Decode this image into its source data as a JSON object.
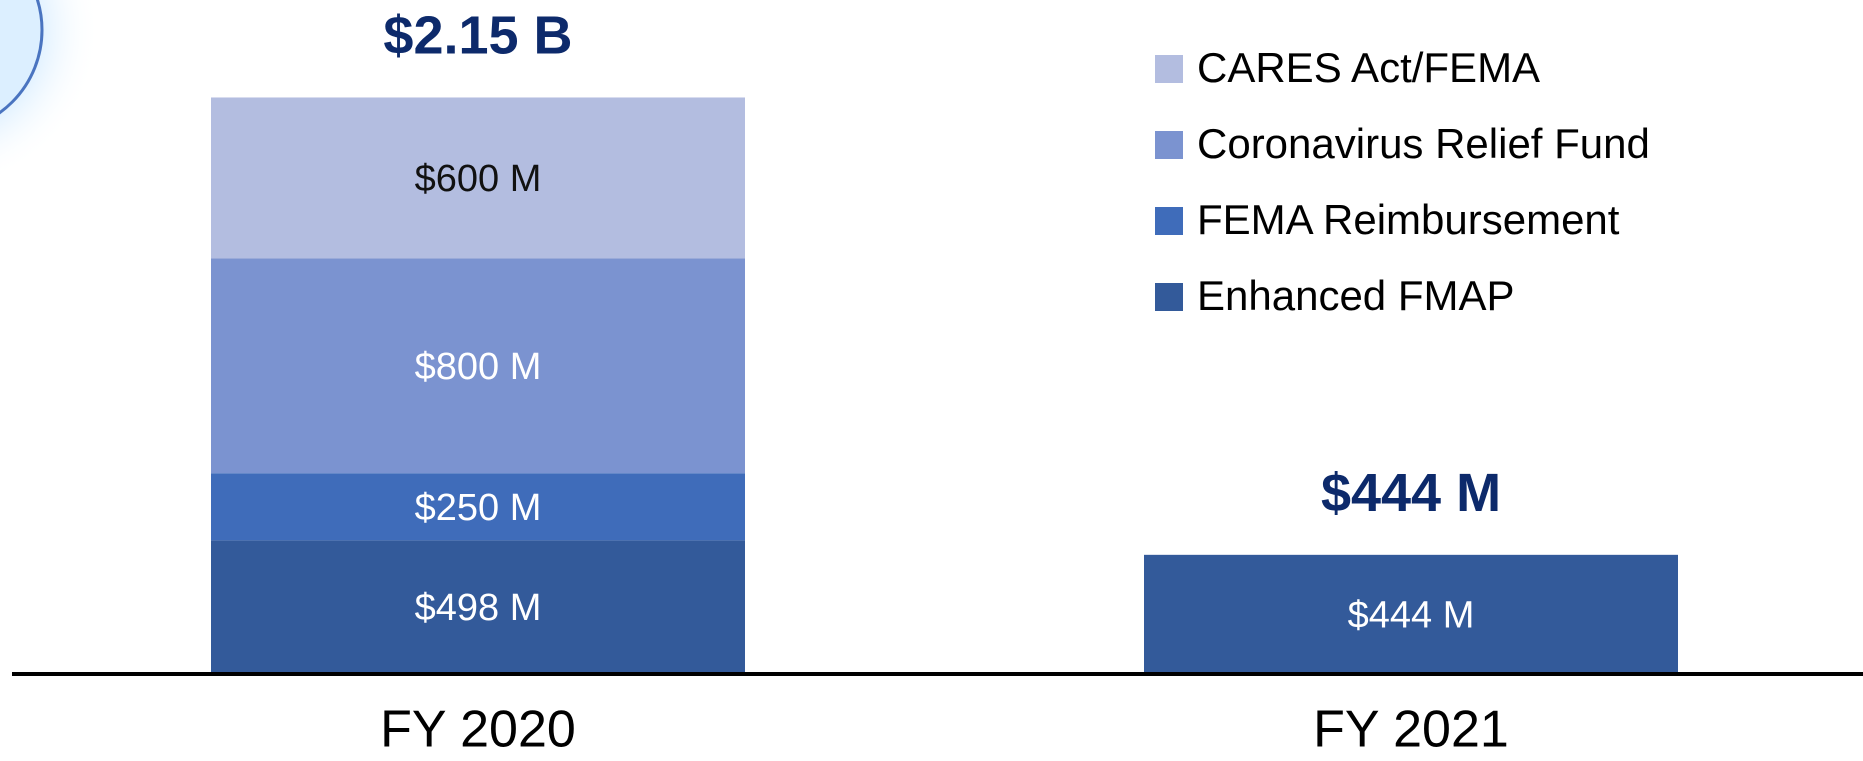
{
  "chart_data": {
    "type": "stacked_bar",
    "categories": [
      "FY 2020",
      "FY 2021"
    ],
    "series": [
      {
        "name": "Enhanced FMAP",
        "color": "#335a9a",
        "label_color": "#ffffff",
        "values": [
          498,
          444
        ],
        "value_labels": [
          "$498 M",
          "$444 M"
        ]
      },
      {
        "name": "FEMA Reimbursement",
        "color": "#3f6cba",
        "label_color": "#ffffff",
        "values": [
          250,
          null
        ],
        "value_labels": [
          "$250 M",
          null
        ]
      },
      {
        "name": "Coronavirus Relief Fund",
        "color": "#7b93d0",
        "label_color": "#ffffff",
        "values": [
          800,
          null
        ],
        "value_labels": [
          "$800 M",
          null
        ]
      },
      {
        "name": "CARES Act/FEMA",
        "color": "#b3bde0",
        "label_color": "#111111",
        "values": [
          600,
          null
        ],
        "value_labels": [
          "$600 M",
          null
        ]
      }
    ],
    "totals": {
      "values": [
        2150,
        444
      ],
      "value_labels": [
        "$2.15 B",
        "$444 M"
      ]
    },
    "ylim": [
      0,
      2500
    ],
    "legend": "top-right"
  }
}
